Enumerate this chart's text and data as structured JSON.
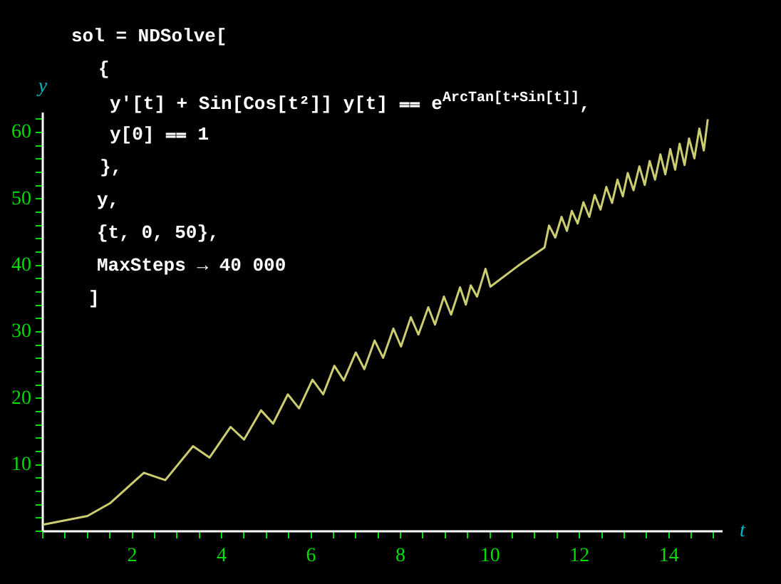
{
  "chart_data": {
    "type": "line",
    "xlabel": "t",
    "ylabel": "y",
    "annotations": [
      "sol = NDSolve[",
      "{",
      "y'[t] + Sin[Cos[t²]] y[t] ⩵ e$^{ArcTan[t+Sin[t]]}$,",
      "y[0] ⩵ 1",
      "},",
      "y,",
      "{t, 0, 50},",
      "MaxSteps → 40 000",
      "]"
    ],
    "series": [
      {
        "color": "#cccc70",
        "x": [
          0,
          1,
          1.5,
          2.26,
          2.74,
          3.36,
          3.73,
          4.2,
          4.5,
          4.88,
          5.15,
          5.48,
          5.73,
          6.03,
          6.27,
          6.52,
          6.73,
          7.0,
          7.19,
          7.42,
          7.61,
          7.84,
          8.01,
          8.23,
          8.4,
          8.62,
          8.77,
          8.97,
          9.13,
          9.33,
          9.46,
          9.57,
          9.71,
          9.9,
          10.01,
          10.62,
          11.22,
          11.32,
          11.46,
          11.6,
          11.72,
          11.83,
          11.96,
          12.09,
          12.22,
          12.34,
          12.47,
          12.6,
          12.73,
          12.85,
          12.97,
          13.08,
          13.21,
          13.34,
          13.46,
          13.57,
          13.69,
          13.81,
          13.92,
          14.03,
          14.14,
          14.24,
          14.35,
          14.45,
          14.57,
          14.68,
          14.78,
          14.87
        ],
        "values": [
          1.0,
          2.3,
          4.2,
          8.8,
          7.7,
          12.8,
          11.1,
          15.7,
          13.8,
          18.2,
          16.2,
          20.6,
          18.5,
          22.8,
          20.6,
          24.9,
          22.7,
          26.9,
          24.4,
          28.7,
          26.1,
          30.5,
          27.8,
          32.2,
          29.6,
          33.7,
          31.1,
          35.3,
          32.6,
          36.7,
          34.1,
          37.0,
          35.3,
          39.5,
          36.8,
          39.9,
          42.7,
          46.0,
          44.2,
          47.3,
          45.2,
          48.2,
          46.3,
          49.5,
          47.3,
          50.6,
          48.4,
          51.8,
          49.4,
          52.9,
          50.4,
          53.9,
          51.3,
          54.9,
          52.1,
          55.7,
          52.9,
          56.7,
          53.7,
          57.5,
          54.4,
          58.3,
          55.1,
          59.1,
          56.1,
          60.6,
          57.3,
          62.0
        ]
      }
    ],
    "xlim": [
      0,
      15.2
    ],
    "ylim": [
      0,
      63
    ],
    "xticks": [
      {
        "value": 0,
        "label": null
      },
      {
        "value": 0.5,
        "label": null
      },
      {
        "value": 1,
        "label": null
      },
      {
        "value": 1.5,
        "label": null
      },
      2,
      {
        "value": 2.5,
        "label": null
      },
      {
        "value": 3,
        "label": null
      },
      {
        "value": 3.5,
        "label": null
      },
      4,
      {
        "value": 4.5,
        "label": null
      },
      {
        "value": 5,
        "label": null
      },
      {
        "value": 5.5,
        "label": null
      },
      6,
      {
        "value": 6.5,
        "label": null
      },
      {
        "value": 7,
        "label": null
      },
      {
        "value": 7.5,
        "label": null
      },
      8,
      {
        "value": 8.5,
        "label": null
      },
      {
        "value": 9,
        "label": null
      },
      {
        "value": 9.5,
        "label": null
      },
      10,
      {
        "value": 10.5,
        "label": null
      },
      {
        "value": 11,
        "label": null
      },
      {
        "value": 11.5,
        "label": null
      },
      12,
      {
        "value": 12.5,
        "label": null
      },
      {
        "value": 13,
        "label": null
      },
      {
        "value": 13.5,
        "label": null
      },
      14,
      {
        "value": 14.5,
        "label": null
      },
      {
        "value": 15,
        "label": null
      }
    ],
    "yticks": [
      {
        "value": 0,
        "label": null
      },
      {
        "value": 2,
        "label": null
      },
      {
        "value": 4,
        "label": null
      },
      {
        "value": 6,
        "label": null
      },
      {
        "value": 8,
        "label": null
      },
      10,
      {
        "value": 12,
        "label": null
      },
      {
        "value": 14,
        "label": null
      },
      {
        "value": 16,
        "label": null
      },
      {
        "value": 18,
        "label": null
      },
      20,
      {
        "value": 22,
        "label": null
      },
      {
        "value": 24,
        "label": null
      },
      {
        "value": 26,
        "label": null
      },
      {
        "value": 28,
        "label": null
      },
      30,
      {
        "value": 32,
        "label": null
      },
      {
        "value": 34,
        "label": null
      },
      {
        "value": 36,
        "label": null
      },
      {
        "value": 38,
        "label": null
      },
      40,
      {
        "value": 42,
        "label": null
      },
      {
        "value": 44,
        "label": null
      },
      {
        "value": 46,
        "label": null
      },
      {
        "value": 48,
        "label": null
      },
      50,
      {
        "value": 52,
        "label": null
      },
      {
        "value": 54,
        "label": null
      },
      {
        "value": 56,
        "label": null
      },
      {
        "value": 58,
        "label": null
      },
      60,
      {
        "value": 62,
        "label": null
      }
    ],
    "grid": false,
    "legend": false,
    "marker": "none",
    "line_style": "solid"
  }
}
